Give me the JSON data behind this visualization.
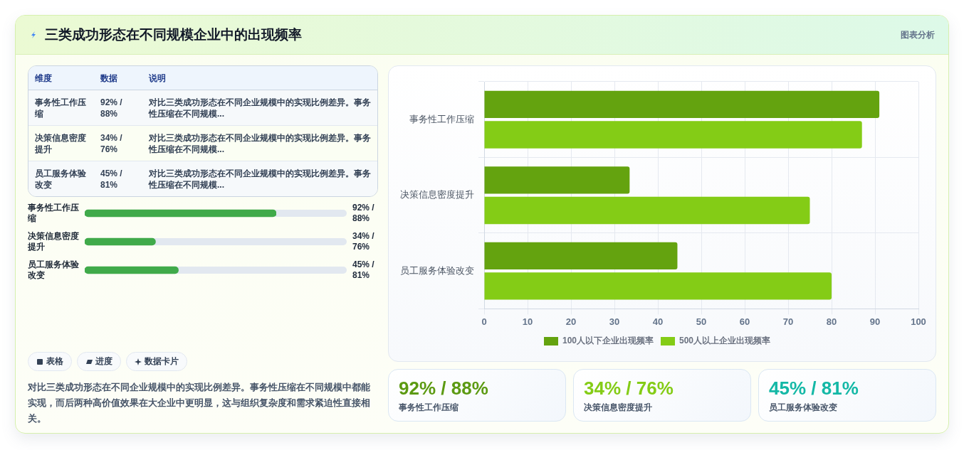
{
  "chart_data": [
    {
      "type": "other",
      "title": "三类成功形态在不同规模企业中的出现频率",
      "annotations": [
        "图表分析"
      ]
    },
    {
      "type": "other",
      "annotations": [
        "维度",
        "数据",
        "说明",
        "事务性工作压缩",
        "92% / 88%",
        "对比三类成功形态在不同企业规模中的实现比例差异。事务性压缩在不同规模...",
        "决策信息密度提升",
        "34% / 76%",
        "对比三类成功形态在不同企业规模中的实现比例差异。事务性压缩在不同规模...",
        "员工服务体验改变",
        "45% / 81%",
        "对比三类成功形态在不同企业规模中的实现比例差异。事务性压缩在不同规模..."
      ]
    },
    {
      "type": "bar",
      "orientation": "horizontal",
      "categories": [
        "事务性工作压缩",
        "决策信息密度提升",
        "员工服务体验改变"
      ],
      "values": [
        92,
        34,
        45
      ],
      "color": "#40aa4a",
      "value_labels": [
        "92% / 88%",
        "34% / 76%",
        "45% / 81%"
      ],
      "tick_labels": "y"
    },
    {
      "type": "other",
      "annotations": [
        "表格",
        "进度",
        "数据卡片",
        "对比三类成功形态在不同企业规模中的实现比例差异。事务性压缩在不同规模中都能实现，而后两种高价值效果在大企业中更明显，这与组织复杂度和需求紧迫性直接相关。"
      ]
    },
    {
      "type": "bar",
      "orientation": "horizontal",
      "categories": [
        "事务性工作压缩",
        "决策信息密度提升",
        "员工服务体验改变"
      ],
      "series": [
        {
          "name": "100人以下企业出现频率",
          "color": "#64a30f",
          "values": [
            91,
            33.5,
            44.5
          ]
        },
        {
          "name": "500人以上企业出现频率",
          "color": "#84cc16",
          "values": [
            87,
            75,
            80
          ]
        }
      ],
      "xlim": [
        0,
        100
      ],
      "xticks": [
        0,
        10,
        20,
        30,
        40,
        50,
        60,
        70,
        80,
        90,
        100
      ],
      "grid": true,
      "legend": "bottom"
    },
    {
      "type": "other",
      "annotations": [
        "92% / 88%",
        "事务性工作压缩",
        "34% / 76%",
        "决策信息密度提升",
        "45% / 81%",
        "员工服务体验改变"
      ],
      "colors": [
        "#5c9a12",
        "#84cc16",
        "#14b8a6"
      ]
    }
  ]
}
